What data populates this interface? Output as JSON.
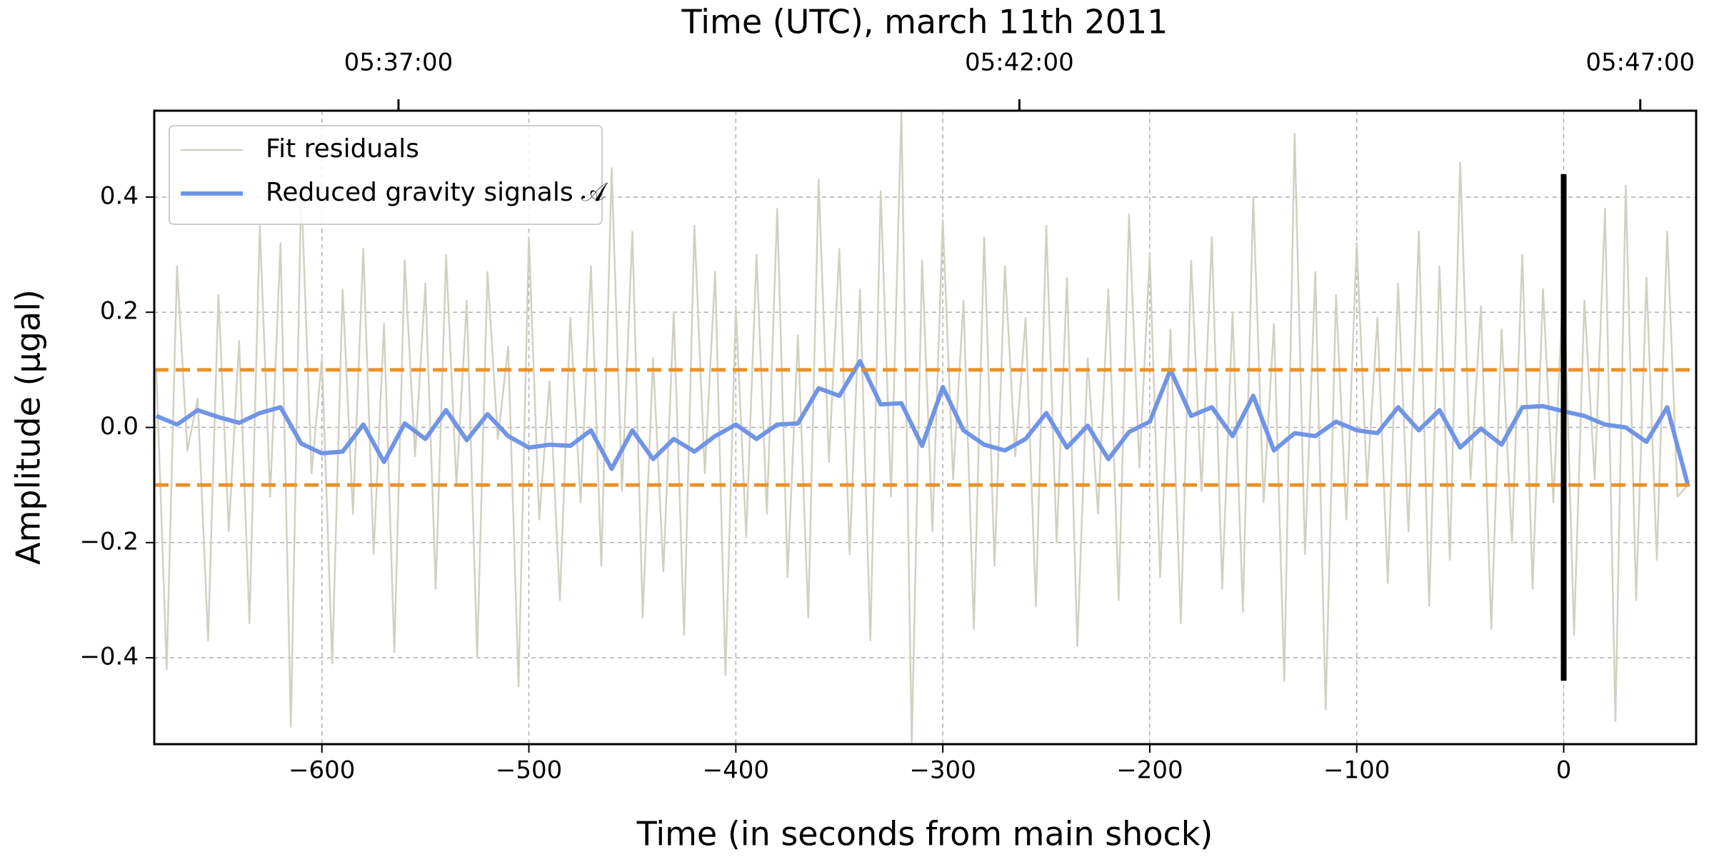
{
  "chart_data": {
    "type": "line",
    "title": "Time (UTC), march 11th 2011",
    "xlabel": "Time (in seconds from main shock)",
    "ylabel": "Amplitude (μgal)",
    "xlim": [
      -681,
      64
    ],
    "ylim": [
      -0.55,
      0.55
    ],
    "xticks": [
      {
        "value": -600,
        "label": "−600"
      },
      {
        "value": -500,
        "label": "−500"
      },
      {
        "value": -400,
        "label": "−400"
      },
      {
        "value": -300,
        "label": "−300"
      },
      {
        "value": -200,
        "label": "−200"
      },
      {
        "value": -100,
        "label": "−100"
      },
      0
    ],
    "yticks": [
      {
        "value": -0.4,
        "label": "−0.4"
      },
      {
        "value": -0.2,
        "label": "−0.2"
      },
      {
        "value": 0,
        "label": "0.0"
      },
      0.2,
      0.4
    ],
    "x2lim": [
      -681,
      64
    ],
    "x2ticks": [
      {
        "value": -563,
        "label": "05:37:00"
      },
      {
        "value": -263,
        "label": "05:42:00"
      },
      {
        "value": 37,
        "label": "05:47:00"
      }
    ],
    "grid": true,
    "legend": "upper left",
    "threshold_lines": {
      "color": "#e8922a",
      "values": [
        0.1,
        -0.1
      ]
    },
    "vline": {
      "color": "#000000",
      "x": 0,
      "ymin": -0.44,
      "ymax": 0.44
    },
    "series": [
      {
        "name": "Fit residuals",
        "color": "#d3d0c3",
        "x": [
          -680,
          -675,
          -670,
          -665,
          -660,
          -655,
          -650,
          -645,
          -640,
          -635,
          -630,
          -625,
          -620,
          -615,
          -610,
          -605,
          -600,
          -595,
          -590,
          -585,
          -580,
          -575,
          -570,
          -565,
          -560,
          -555,
          -550,
          -545,
          -540,
          -535,
          -530,
          -525,
          -520,
          -515,
          -510,
          -505,
          -500,
          -495,
          -490,
          -485,
          -480,
          -475,
          -470,
          -465,
          -460,
          -455,
          -450,
          -445,
          -440,
          -435,
          -430,
          -425,
          -420,
          -415,
          -410,
          -405,
          -400,
          -395,
          -390,
          -385,
          -380,
          -375,
          -370,
          -365,
          -360,
          -355,
          -350,
          -345,
          -340,
          -335,
          -330,
          -325,
          -320,
          -315,
          -310,
          -305,
          -300,
          -295,
          -290,
          -285,
          -280,
          -275,
          -270,
          -265,
          -260,
          -255,
          -250,
          -245,
          -240,
          -235,
          -230,
          -225,
          -220,
          -215,
          -210,
          -205,
          -200,
          -195,
          -190,
          -185,
          -180,
          -175,
          -170,
          -165,
          -160,
          -155,
          -150,
          -145,
          -140,
          -135,
          -130,
          -125,
          -120,
          -115,
          -110,
          -105,
          -100,
          -95,
          -90,
          -85,
          -80,
          -75,
          -70,
          -65,
          -60,
          -55,
          -50,
          -45,
          -40,
          -35,
          -30,
          -25,
          -20,
          -15,
          -10,
          -5,
          0,
          5,
          10,
          15,
          20,
          25,
          30,
          35,
          40,
          45,
          50,
          55,
          60
        ],
        "values": [
          0.1,
          -0.42,
          0.28,
          -0.04,
          0.05,
          -0.37,
          0.23,
          -0.18,
          0.15,
          -0.34,
          0.35,
          -0.12,
          0.32,
          -0.52,
          0.42,
          -0.08,
          0.12,
          -0.41,
          0.24,
          -0.15,
          0.31,
          -0.22,
          0.18,
          -0.39,
          0.29,
          -0.05,
          0.25,
          -0.28,
          0.3,
          -0.1,
          0.22,
          -0.4,
          0.27,
          -0.02,
          0.14,
          -0.45,
          0.33,
          -0.16,
          0.08,
          -0.3,
          0.19,
          -0.13,
          0.28,
          -0.24,
          0.45,
          -0.11,
          0.34,
          -0.33,
          0.12,
          -0.25,
          0.2,
          -0.36,
          0.35,
          -0.08,
          0.27,
          -0.43,
          0.21,
          -0.19,
          0.3,
          -0.15,
          0.38,
          -0.26,
          0.16,
          -0.33,
          0.43,
          -0.06,
          0.31,
          -0.22,
          0.24,
          -0.37,
          0.41,
          -0.12,
          0.55,
          -0.55,
          0.29,
          -0.18,
          0.36,
          -0.09,
          0.22,
          -0.35,
          0.33,
          -0.24,
          0.28,
          -0.05,
          0.19,
          -0.31,
          0.35,
          -0.2,
          0.26,
          -0.38,
          0.12,
          -0.15,
          0.24,
          -0.3,
          0.37,
          -0.07,
          0.3,
          -0.26,
          0.17,
          -0.34,
          0.29,
          -0.11,
          0.33,
          -0.28,
          0.2,
          -0.32,
          0.4,
          -0.13,
          0.18,
          -0.44,
          0.51,
          -0.22,
          0.27,
          -0.49,
          0.23,
          -0.16,
          0.32,
          -0.1,
          0.19,
          -0.27,
          0.25,
          -0.18,
          0.34,
          -0.31,
          0.28,
          -0.23,
          0.46,
          -0.09,
          0.21,
          -0.35,
          0.17,
          -0.2,
          0.3,
          -0.28,
          0.24,
          -0.13,
          0.27,
          -0.36,
          0.22,
          -0.09,
          0.38,
          -0.51,
          0.42,
          -0.3,
          0.26,
          -0.23,
          0.34,
          -0.12,
          -0.1
        ]
      },
      {
        "name": "Reduced gravity signals 𝒜",
        "color": "#7094e6",
        "x": [
          -680,
          -670,
          -660,
          -650,
          -640,
          -630,
          -620,
          -610,
          -600,
          -590,
          -580,
          -570,
          -560,
          -550,
          -540,
          -530,
          -520,
          -510,
          -500,
          -490,
          -480,
          -470,
          -460,
          -450,
          -440,
          -430,
          -420,
          -410,
          -400,
          -390,
          -380,
          -370,
          -360,
          -350,
          -340,
          -330,
          -320,
          -310,
          -300,
          -290,
          -280,
          -270,
          -260,
          -250,
          -240,
          -230,
          -220,
          -210,
          -200,
          -190,
          -180,
          -170,
          -160,
          -150,
          -140,
          -130,
          -120,
          -110,
          -100,
          -90,
          -80,
          -70,
          -60,
          -50,
          -40,
          -30,
          -20,
          -10,
          0,
          10,
          20,
          30,
          40,
          50,
          60
        ],
        "values": [
          0.02,
          0.005,
          0.03,
          0.018,
          0.008,
          0.025,
          0.035,
          -0.028,
          -0.045,
          -0.042,
          0.005,
          -0.06,
          0.007,
          -0.02,
          0.03,
          -0.022,
          0.023,
          -0.015,
          -0.035,
          -0.03,
          -0.032,
          -0.005,
          -0.072,
          -0.005,
          -0.055,
          -0.02,
          -0.042,
          -0.015,
          0.005,
          -0.02,
          0.005,
          0.007,
          0.068,
          0.055,
          0.115,
          0.04,
          0.042,
          -0.032,
          0.07,
          -0.005,
          -0.03,
          -0.04,
          -0.02,
          0.025,
          -0.035,
          0.003,
          -0.055,
          -0.008,
          0.01,
          0.1,
          0.02,
          0.035,
          -0.015,
          0.055,
          -0.04,
          -0.01,
          -0.015,
          0.01,
          -0.005,
          -0.01,
          0.035,
          -0.005,
          0.03,
          -0.035,
          -0.002,
          -0.03,
          0.035,
          0.037,
          0.028,
          0.02,
          0.005,
          0.0,
          -0.025,
          0.035,
          -0.1
        ]
      }
    ]
  }
}
